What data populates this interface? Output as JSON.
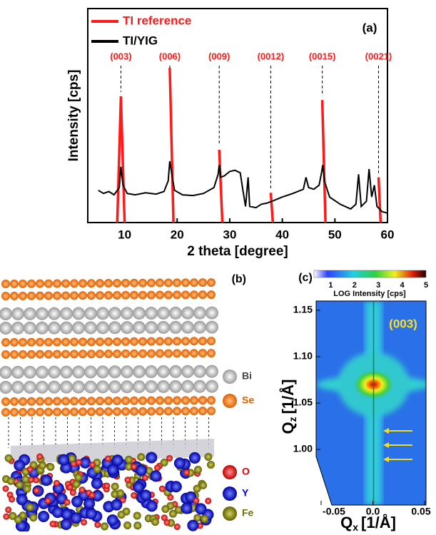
{
  "chart_data": [
    {
      "type": "line",
      "panel_label": "(a)",
      "xlabel": "2 theta [degree]",
      "ylabel": "Intensity [cps]",
      "xlim": [
        3,
        60
      ],
      "xticks": [
        10,
        20,
        30,
        40,
        50,
        60
      ],
      "ylim": [
        1,
        10000
      ],
      "log_y": true,
      "series": [
        {
          "name": "TI reference",
          "color": "#ff1a1a",
          "x": [
            8.6,
            9.3,
            10,
            18,
            18.6,
            19.3,
            27.5,
            28,
            28.6,
            37.5,
            37.8,
            38.2,
            47,
            47.6,
            48.2,
            58,
            58.3,
            58.7
          ],
          "values": [
            1,
            230,
            1,
            null,
            780,
            1,
            null,
            23,
            1,
            null,
            3.6,
            1,
            null,
            195,
            1,
            null,
            7,
            1
          ]
        },
        {
          "name": "TI/YIG",
          "color": "#000000",
          "x": [
            5,
            6,
            7,
            8,
            9,
            9.3,
            9.7,
            10.5,
            12,
            14,
            16,
            17.5,
            18.3,
            18.6,
            18.9,
            19.5,
            21,
            23,
            25,
            27,
            27.8,
            28,
            28.3,
            29,
            30,
            31,
            32,
            32.5,
            33,
            33.5,
            33.8,
            35,
            36,
            37,
            38,
            40,
            42,
            44,
            44.5,
            45,
            46,
            47,
            47.5,
            47.7,
            48,
            49,
            51,
            53,
            54,
            54.5,
            55,
            56,
            56.5,
            57,
            57.5,
            58,
            59,
            60
          ],
          "values": [
            4,
            3.5,
            3.8,
            3.3,
            4.5,
            11,
            5,
            3.5,
            3.3,
            3.6,
            3.4,
            3.8,
            6,
            14,
            9,
            4,
            3.3,
            3.2,
            3.5,
            4.5,
            8,
            12,
            7,
            7.5,
            9,
            9.5,
            8.5,
            4,
            2,
            7,
            2,
            1.9,
            2.2,
            2.3,
            2.5,
            3,
            3.5,
            4.2,
            7,
            4.5,
            4.2,
            5,
            9,
            12,
            6,
            3,
            2.2,
            1.8,
            2.2,
            8,
            2,
            2.5,
            10,
            3,
            5,
            2,
            1.6,
            1.5
          ]
        }
      ],
      "annotations": [
        {
          "text": "(003)",
          "x": 9.3
        },
        {
          "text": "(006)",
          "x": 18.6
        },
        {
          "text": "(009)",
          "x": 28
        },
        {
          "text": "(0012)",
          "x": 37.8
        },
        {
          "text": "(0015)",
          "x": 47.6
        },
        {
          "text": "(0021)",
          "x": 58.3
        }
      ]
    },
    {
      "type": "heatmap",
      "panel_label": "(c)",
      "annotation": "(003)",
      "xlabel": {
        "symbol": "Q",
        "subscript": "x",
        "unit": "[1/Å]"
      },
      "ylabel": {
        "symbol": "Q",
        "subscript": "z",
        "unit": "[1/Å]"
      },
      "xlim": [
        -0.05,
        0.05
      ],
      "xticks": [
        -0.05,
        {
          "value": 0,
          "label": "0.0"
        },
        0.05
      ],
      "ylim": [
        0.94,
        1.16
      ],
      "yticks": [
        {
          "value": 1.0,
          "label": "1.00"
        },
        1.05,
        {
          "value": 1.1,
          "label": "1.10"
        },
        1.15
      ],
      "colorbar_label": "LOG Intensity [cps]",
      "clim": [
        0.3,
        5
      ],
      "colorbar_ticks": [
        1,
        2,
        3,
        4,
        5
      ]
    }
  ],
  "structure_panel": {
    "panel_label": "(b)",
    "legend": [
      "Bi",
      "Se",
      "O",
      "Y",
      "Fe"
    ]
  }
}
